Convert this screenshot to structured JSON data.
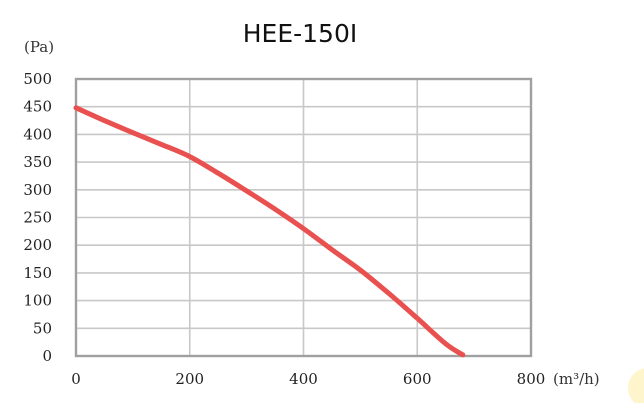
{
  "chart_data": {
    "type": "line",
    "title": "HEE-150I",
    "xlabel": "(m³/h)",
    "ylabel": "(Pa)",
    "xlim": [
      0,
      800
    ],
    "ylim": [
      0,
      500
    ],
    "xticks": [
      "0",
      "200",
      "400",
      "600",
      "800"
    ],
    "yticks": [
      "0",
      "50",
      "100",
      "150",
      "200",
      "250",
      "300",
      "350",
      "400",
      "450",
      "500"
    ],
    "grid": true,
    "series": [
      {
        "color": "#e8514f",
        "x": [
          0,
          50,
          100,
          150,
          200,
          250,
          300,
          350,
          400,
          450,
          500,
          550,
          600,
          650,
          680
        ],
        "y": [
          448,
          425,
          403,
          382,
          360,
          330,
          298,
          265,
          230,
          192,
          155,
          113,
          68,
          22,
          2
        ]
      }
    ]
  }
}
